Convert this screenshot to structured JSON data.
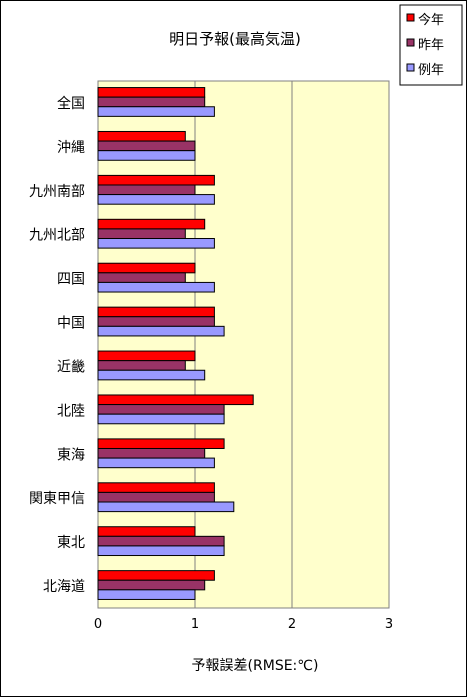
{
  "chart_data": {
    "type": "bar",
    "orientation": "horizontal",
    "title": "明日予報(最高気温)",
    "xlabel": "予報誤差(RMSE:℃)",
    "ylabel": "",
    "xlim": [
      0,
      3
    ],
    "xticks": [
      "0",
      "1",
      "2",
      "3"
    ],
    "grid": true,
    "legend_position": "top-right",
    "plot_background": "#ffffcc",
    "categories": [
      "全国",
      "沖縄",
      "九州南部",
      "九州北部",
      "四国",
      "中国",
      "近畿",
      "北陸",
      "東海",
      "関東甲信",
      "東北",
      "北海道"
    ],
    "series": [
      {
        "name": "今年",
        "color": "#ff0000",
        "values": [
          1.1,
          0.9,
          1.2,
          1.1,
          1.0,
          1.2,
          1.0,
          1.6,
          1.3,
          1.2,
          1.0,
          1.2
        ]
      },
      {
        "name": "昨年",
        "color": "#993366",
        "values": [
          1.1,
          1.0,
          1.0,
          0.9,
          0.9,
          1.2,
          0.9,
          1.3,
          1.1,
          1.2,
          1.3,
          1.1
        ]
      },
      {
        "name": "例年",
        "color": "#9999ff",
        "values": [
          1.2,
          1.0,
          1.2,
          1.2,
          1.2,
          1.3,
          1.1,
          1.3,
          1.2,
          1.4,
          1.3,
          1.0
        ]
      }
    ]
  }
}
